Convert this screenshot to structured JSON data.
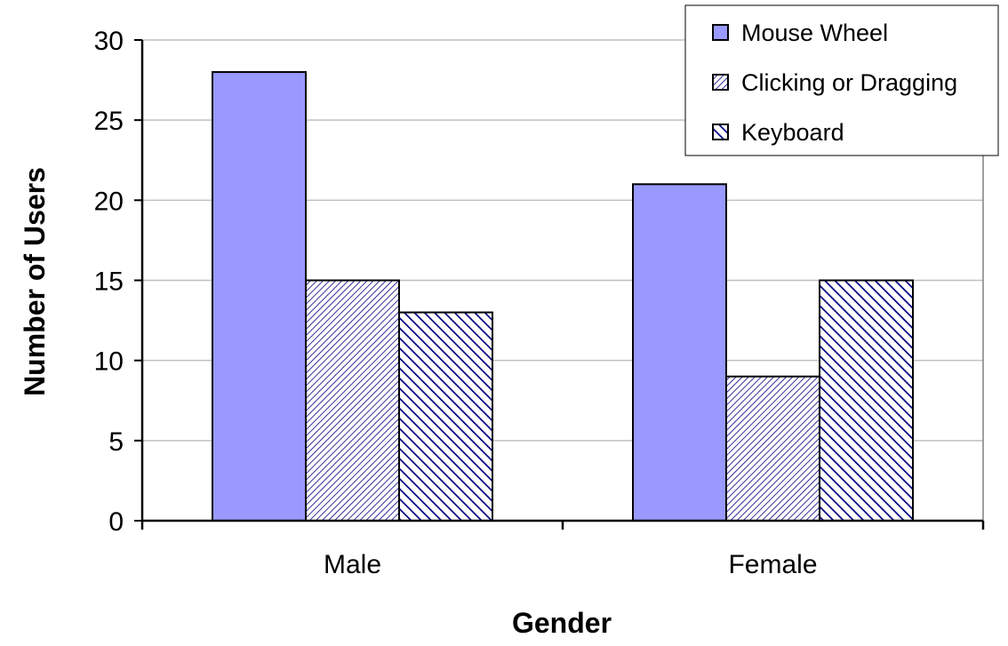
{
  "chart_data": {
    "type": "bar",
    "title": "",
    "xlabel": "Gender",
    "ylabel": "Number of Users",
    "categories": [
      "Male",
      "Female"
    ],
    "series": [
      {
        "name": "Mouse Wheel",
        "values": [
          28,
          21
        ],
        "fill": "#9999ff",
        "pattern": "solid"
      },
      {
        "name": "Clicking or Dragging",
        "values": [
          15,
          9
        ],
        "fill": "#000080",
        "pattern": "fine-diagonal"
      },
      {
        "name": "Keyboard",
        "values": [
          13,
          15
        ],
        "fill": "#000080",
        "pattern": "wide-diagonal"
      }
    ],
    "ylim": [
      0,
      30
    ],
    "yticks": [
      0,
      5,
      10,
      15,
      20,
      25,
      30
    ],
    "grid": true,
    "legend": "top-right"
  }
}
